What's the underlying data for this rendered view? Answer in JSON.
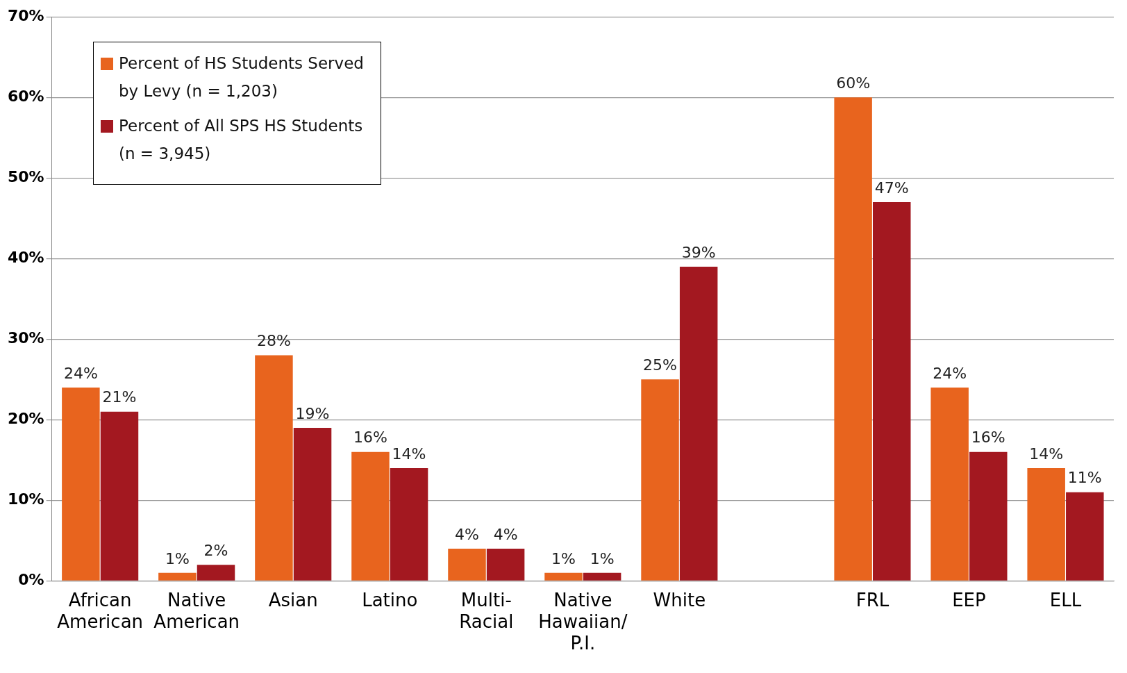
{
  "chart_data": {
    "type": "bar",
    "categories": [
      "African American",
      "Native American",
      "Asian",
      "Latino",
      "Multi-Racial",
      "Native Hawaiian/ P.I.",
      "White",
      null,
      "FRL",
      "EEP",
      "ELL"
    ],
    "series": [
      {
        "name": "Percent of HS Students Served by Levy (n = 1,203)",
        "color": "#e8641e",
        "values": [
          24,
          1,
          28,
          16,
          4,
          1,
          25,
          null,
          60,
          24,
          14
        ],
        "value_labels": [
          "24%",
          "1%",
          "28%",
          "16%",
          "4%",
          "1%",
          "25%",
          null,
          "60%",
          "24%",
          "14%"
        ]
      },
      {
        "name": "Percent of All SPS HS Students (n = 3,945)",
        "color": "#a31820",
        "values": [
          21,
          2,
          19,
          14,
          4,
          1,
          39,
          null,
          47,
          16,
          11
        ],
        "value_labels": [
          "21%",
          "2%",
          "19%",
          "14%",
          "4%",
          "1%",
          "39%",
          null,
          "47%",
          "16%",
          "11%"
        ]
      }
    ],
    "ylim": [
      0,
      70
    ],
    "yticks": [
      {
        "value": 0,
        "label": "0%"
      },
      {
        "value": 10,
        "label": "10%"
      },
      {
        "value": 20,
        "label": "20%"
      },
      {
        "value": 30,
        "label": "30%"
      },
      {
        "value": 40,
        "label": "40%"
      },
      {
        "value": 50,
        "label": "50%"
      },
      {
        "value": 60,
        "label": "60%"
      },
      {
        "value": 70,
        "label": "70%"
      }
    ],
    "grid": "y",
    "legend": "top left"
  }
}
